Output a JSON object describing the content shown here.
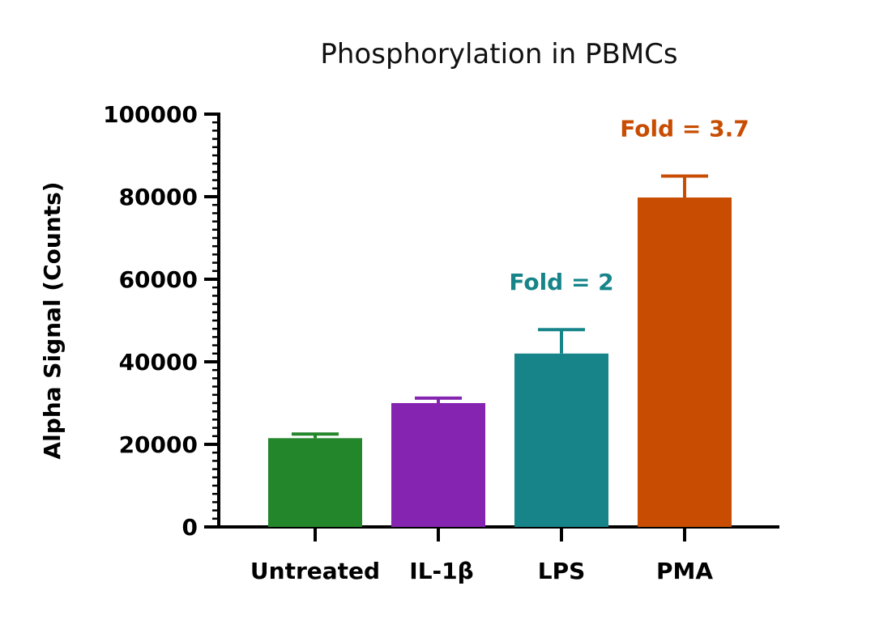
{
  "chart_data": {
    "type": "bar",
    "title": "Phosphorylation in PBMCs",
    "xlabel": "",
    "ylabel": "Alpha Signal (Counts)",
    "ylim": [
      0,
      100000
    ],
    "yticks": [
      0,
      20000,
      40000,
      60000,
      80000,
      100000
    ],
    "ytick_labels": [
      "0",
      "20000",
      "40000",
      "60000",
      "80000",
      "100000"
    ],
    "minor_ticks_per_major": 10,
    "grid": false,
    "categories": [
      "Untreated",
      "IL-1β",
      "LPS",
      "PMA"
    ],
    "values": [
      21500,
      30000,
      42000,
      79800
    ],
    "errors": [
      1000,
      1200,
      5800,
      5200
    ],
    "colors": [
      "#23862b",
      "#8524b0",
      "#168489",
      "#c84d03"
    ],
    "annotations": [
      {
        "category": "LPS",
        "text": "Fold = 2",
        "color": "#168489"
      },
      {
        "category": "PMA",
        "text": "Fold = 3.7",
        "color": "#c84d03"
      }
    ]
  }
}
